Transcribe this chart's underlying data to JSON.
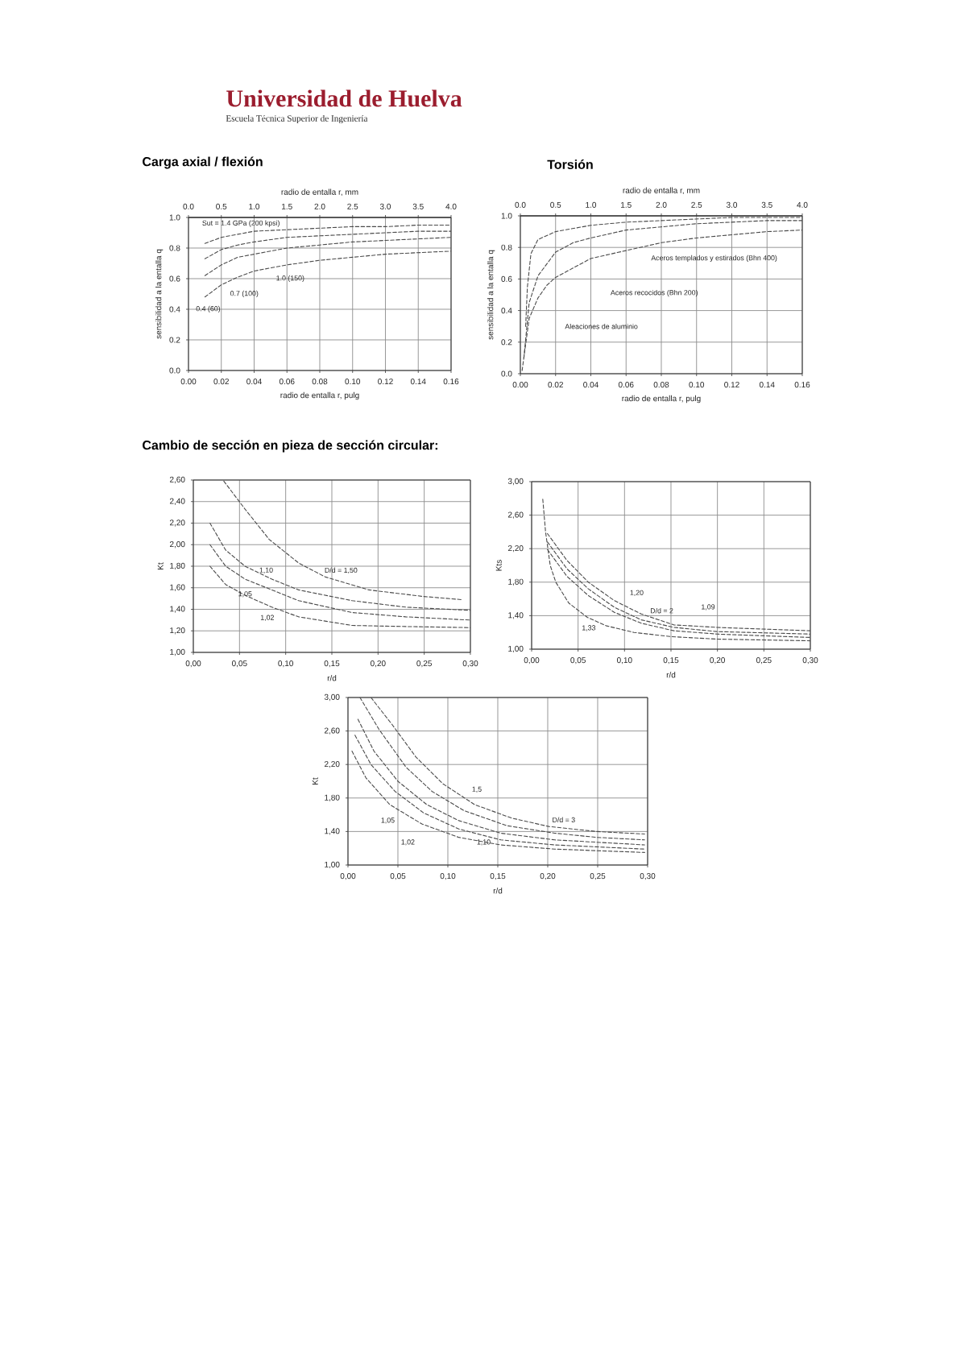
{
  "chart_data": [
    {
      "type": "other",
      "title": "Universidad de Huelva",
      "subtitle": "Escuela Técnica Superior de Ingeniería"
    },
    {
      "type": "line",
      "title": "Carga axial / flexión",
      "xlabel": "radio de entalla r, pulg",
      "x2label": "radio de entalla r, mm",
      "ylabel": "sensibilidad a la entalla q",
      "xlim": [
        0,
        0.16
      ],
      "xticks": [
        {
          "value": 0,
          "label": "0.00"
        },
        0.02,
        0.04,
        0.06,
        0.08,
        {
          "value": 0.1,
          "label": "0.10"
        },
        0.12,
        0.14,
        0.16
      ],
      "x2lim": [
        0,
        4
      ],
      "x2ticks": [
        {
          "value": 0,
          "label": "0.0"
        },
        0.5,
        {
          "value": 1,
          "label": "1.0"
        },
        1.5,
        {
          "value": 2,
          "label": "2.0"
        },
        2.5,
        {
          "value": 3,
          "label": "3.0"
        },
        3.5,
        {
          "value": 4,
          "label": "4.0"
        }
      ],
      "ylim": [
        0,
        1
      ],
      "yticks": [
        {
          "value": 0,
          "label": "0.0"
        },
        0.2,
        0.4,
        0.6,
        0.8,
        {
          "value": 1,
          "label": "1.0"
        }
      ],
      "grid": true,
      "line_style": "dashed",
      "x": [
        0.01,
        0.02,
        0.03,
        0.04,
        0.06,
        0.08,
        0.1,
        0.12,
        0.14,
        0.16
      ],
      "series": [
        {
          "color": "#4a4a4a",
          "values": [
            0.83,
            0.87,
            0.89,
            0.91,
            0.92,
            0.93,
            0.94,
            0.94,
            0.95,
            0.95
          ]
        },
        {
          "color": "#4a4a4a",
          "values": [
            0.73,
            0.79,
            0.82,
            0.84,
            0.87,
            0.88,
            0.89,
            0.9,
            0.91,
            0.91
          ]
        },
        {
          "color": "#4a4a4a",
          "values": [
            0.62,
            0.69,
            0.74,
            0.76,
            0.8,
            0.82,
            0.84,
            0.85,
            0.86,
            0.87
          ]
        },
        {
          "color": "#4a4a4a",
          "values": [
            0.48,
            0.56,
            0.61,
            0.65,
            0.69,
            0.72,
            0.74,
            0.76,
            0.77,
            0.78
          ]
        }
      ],
      "annotations": [
        "Sut = 1.4 GPa (200 kpsi)",
        "1.0 (150)",
        "0.7 (100)",
        "0.4 (60)"
      ]
    },
    {
      "type": "line",
      "title": "Torsión",
      "xlabel": "radio de entalla r, pulg",
      "x2label": "radio de entalla r, mm",
      "ylabel": "sensibilidad a la entalla q",
      "xlim": [
        0,
        0.16
      ],
      "xticks": [
        {
          "value": 0,
          "label": "0.00"
        },
        0.02,
        0.04,
        0.06,
        0.08,
        {
          "value": 0.1,
          "label": "0.10"
        },
        0.12,
        0.14,
        0.16
      ],
      "x2lim": [
        0,
        4
      ],
      "x2ticks": [
        {
          "value": 0,
          "label": "0.0"
        },
        0.5,
        {
          "value": 1,
          "label": "1.0"
        },
        1.5,
        {
          "value": 2,
          "label": "2.0"
        },
        2.5,
        {
          "value": 3,
          "label": "3.0"
        },
        3.5,
        {
          "value": 4,
          "label": "4.0"
        }
      ],
      "ylim": [
        0,
        1
      ],
      "yticks": [
        {
          "value": 0,
          "label": "0.0"
        },
        0.2,
        0.4,
        0.6,
        0.8,
        {
          "value": 1,
          "label": "1.0"
        }
      ],
      "grid": true,
      "line_style": "dashed",
      "series": [
        {
          "color": "#4a4a4a",
          "x": [
            0.003,
            0.004,
            0.006,
            0.01,
            0.02,
            0.04,
            0.06,
            0.08,
            0.1,
            0.12,
            0.14,
            0.16
          ],
          "values": [
            0.3,
            0.55,
            0.76,
            0.85,
            0.9,
            0.94,
            0.96,
            0.97,
            0.98,
            0.99,
            0.99,
            0.99
          ]
        },
        {
          "color": "#4a4a4a",
          "x": [
            0.002,
            0.005,
            0.01,
            0.02,
            0.03,
            0.04,
            0.06,
            0.08,
            0.1,
            0.12,
            0.14,
            0.16
          ],
          "values": [
            0.1,
            0.45,
            0.62,
            0.77,
            0.83,
            0.86,
            0.91,
            0.93,
            0.95,
            0.96,
            0.97,
            0.97
          ]
        },
        {
          "color": "#4a4a4a",
          "x": [
            0.001,
            0.005,
            0.01,
            0.015,
            0.02,
            0.04,
            0.06,
            0.08,
            0.1,
            0.12,
            0.14,
            0.16
          ],
          "values": [
            0.02,
            0.35,
            0.48,
            0.56,
            0.61,
            0.73,
            0.78,
            0.83,
            0.86,
            0.88,
            0.9,
            0.91
          ]
        }
      ],
      "annotations": [
        "Aceros templados y estirados (Bhn 400)",
        "Aceros recocidos (Bhn 200)",
        "Aleaciones de aluminio"
      ]
    },
    {
      "type": "line",
      "title": "Cambio de sección en pieza de sección circular:",
      "xlabel": "r/d",
      "ylabel": "Kt",
      "xlim": [
        0,
        0.3
      ],
      "xticks": [
        {
          "value": 0,
          "label": "0,00"
        },
        {
          "value": 0.05,
          "label": "0,05"
        },
        {
          "value": 0.1,
          "label": "0,10"
        },
        {
          "value": 0.15,
          "label": "0,15"
        },
        {
          "value": 0.2,
          "label": "0,20"
        },
        {
          "value": 0.25,
          "label": "0,25"
        },
        {
          "value": 0.3,
          "label": "0,30"
        }
      ],
      "ylim": [
        1,
        2.6
      ],
      "yticks": [
        {
          "value": 1,
          "label": "1,00"
        },
        {
          "value": 1.2,
          "label": "1,20"
        },
        {
          "value": 1.4,
          "label": "1,40"
        },
        {
          "value": 1.6,
          "label": "1,60"
        },
        {
          "value": 1.8,
          "label": "1,80"
        },
        {
          "value": 2,
          "label": "2,00"
        },
        {
          "value": 2.2,
          "label": "2,20"
        },
        {
          "value": 2.4,
          "label": "2,40"
        },
        {
          "value": 2.6,
          "label": "2,60"
        }
      ],
      "grid": true,
      "line_style": "dashed",
      "series": [
        {
          "color": "#4a4a4a",
          "x": [
            0.033,
            0.056,
            0.082,
            0.114,
            0.143,
            0.19,
            0.248,
            0.29
          ],
          "values": [
            2.59,
            2.33,
            2.05,
            1.83,
            1.7,
            1.58,
            1.52,
            1.49
          ]
        },
        {
          "color": "#4a4a4a",
          "x": [
            0.018,
            0.035,
            0.056,
            0.085,
            0.114,
            0.172,
            0.23,
            0.3
          ],
          "values": [
            2.2,
            1.95,
            1.8,
            1.68,
            1.58,
            1.48,
            1.42,
            1.39
          ]
        },
        {
          "color": "#4a4a4a",
          "x": [
            0.018,
            0.035,
            0.056,
            0.085,
            0.114,
            0.172,
            0.23,
            0.3
          ],
          "values": [
            2.0,
            1.8,
            1.68,
            1.58,
            1.48,
            1.37,
            1.33,
            1.3
          ]
        },
        {
          "color": "#4a4a4a",
          "x": [
            0.018,
            0.035,
            0.056,
            0.085,
            0.114,
            0.172,
            0.23,
            0.3
          ],
          "values": [
            1.8,
            1.63,
            1.53,
            1.42,
            1.33,
            1.25,
            1.24,
            1.23
          ]
        }
      ],
      "annotations": [
        "D/d = 1,50",
        "1,10",
        "1,05",
        "1,02"
      ]
    },
    {
      "type": "line",
      "xlabel": "r/d",
      "ylabel": "Kts",
      "xlim": [
        0,
        0.3
      ],
      "xticks": [
        {
          "value": 0,
          "label": "0,00"
        },
        {
          "value": 0.05,
          "label": "0,05"
        },
        {
          "value": 0.1,
          "label": "0,10"
        },
        {
          "value": 0.15,
          "label": "0,15"
        },
        {
          "value": 0.2,
          "label": "0,20"
        },
        {
          "value": 0.25,
          "label": "0,25"
        },
        {
          "value": 0.3,
          "label": "0,30"
        }
      ],
      "ylim": [
        1,
        3
      ],
      "yticks": [
        {
          "value": 1,
          "label": "1,00"
        },
        {
          "value": 1.4,
          "label": "1,40"
        },
        {
          "value": 1.8,
          "label": "1,80"
        },
        {
          "value": 2.2,
          "label": "2,20"
        },
        {
          "value": 2.6,
          "label": "2,60"
        },
        {
          "value": 3,
          "label": "3,00"
        }
      ],
      "grid": true,
      "line_style": "dashed",
      "series": [
        {
          "color": "#4a4a4a",
          "x": [
            0.017,
            0.038,
            0.061,
            0.089,
            0.118,
            0.153,
            0.2,
            0.3
          ],
          "values": [
            2.38,
            2.06,
            1.8,
            1.58,
            1.42,
            1.29,
            1.26,
            1.22
          ]
        },
        {
          "color": "#4a4a4a",
          "x": [
            0.017,
            0.038,
            0.061,
            0.089,
            0.118,
            0.153,
            0.2,
            0.3
          ],
          "values": [
            2.28,
            1.96,
            1.72,
            1.5,
            1.35,
            1.26,
            1.21,
            1.18
          ]
        },
        {
          "color": "#4a4a4a",
          "x": [
            0.017,
            0.038,
            0.061,
            0.089,
            0.118,
            0.153,
            0.2,
            0.3
          ],
          "values": [
            2.19,
            1.87,
            1.64,
            1.44,
            1.31,
            1.22,
            1.18,
            1.14
          ]
        },
        {
          "color": "#4a4a4a",
          "x": [
            0.012,
            0.015,
            0.02,
            0.026,
            0.04,
            0.06,
            0.08,
            0.11,
            0.15,
            0.2,
            0.3
          ],
          "values": [
            2.79,
            2.4,
            2.0,
            1.8,
            1.55,
            1.38,
            1.28,
            1.2,
            1.15,
            1.12,
            1.1
          ]
        }
      ],
      "annotations": [
        "1,20",
        "D/d = 2",
        "1,09",
        "1,33"
      ]
    },
    {
      "type": "line",
      "xlabel": "r/d",
      "ylabel": "Kt",
      "xlim": [
        0,
        0.3
      ],
      "xticks": [
        {
          "value": 0,
          "label": "0,00"
        },
        {
          "value": 0.05,
          "label": "0,05"
        },
        {
          "value": 0.1,
          "label": "0,10"
        },
        {
          "value": 0.15,
          "label": "0,15"
        },
        {
          "value": 0.2,
          "label": "0,20"
        },
        {
          "value": 0.25,
          "label": "0,25"
        },
        {
          "value": 0.3,
          "label": "0,30"
        }
      ],
      "ylim": [
        1,
        3
      ],
      "yticks": [
        {
          "value": 1,
          "label": "1,00"
        },
        {
          "value": 1.4,
          "label": "1,40"
        },
        {
          "value": 1.8,
          "label": "1,80"
        },
        {
          "value": 2.2,
          "label": "2,20"
        },
        {
          "value": 2.6,
          "label": "2,60"
        },
        {
          "value": 3,
          "label": "3,00"
        }
      ],
      "grid": true,
      "line_style": "dashed",
      "series": [
        {
          "color": "#4a4a4a",
          "x": [
            0.023,
            0.044,
            0.068,
            0.095,
            0.127,
            0.164,
            0.201,
            0.249,
            0.297
          ],
          "values": [
            3.0,
            2.68,
            2.29,
            1.97,
            1.72,
            1.56,
            1.46,
            1.4,
            1.37
          ]
        },
        {
          "color": "#4a4a4a",
          "x": [
            0.012,
            0.031,
            0.058,
            0.084,
            0.116,
            0.159,
            0.207,
            0.249,
            0.297
          ],
          "values": [
            3.0,
            2.62,
            2.17,
            1.88,
            1.65,
            1.47,
            1.38,
            1.33,
            1.3
          ]
        },
        {
          "color": "#4a4a4a",
          "x": [
            0.01,
            0.026,
            0.05,
            0.079,
            0.111,
            0.153,
            0.207,
            0.297
          ],
          "values": [
            2.74,
            2.36,
            2.0,
            1.72,
            1.53,
            1.38,
            1.3,
            1.24
          ]
        },
        {
          "color": "#4a4a4a",
          "x": [
            0.007,
            0.023,
            0.047,
            0.076,
            0.111,
            0.153,
            0.207,
            0.297
          ],
          "values": [
            2.55,
            2.2,
            1.88,
            1.62,
            1.43,
            1.3,
            1.24,
            1.19
          ]
        },
        {
          "color": "#4a4a4a",
          "x": [
            0.004,
            0.018,
            0.042,
            0.074,
            0.111,
            0.153,
            0.207,
            0.297
          ],
          "values": [
            2.36,
            2.04,
            1.72,
            1.49,
            1.33,
            1.24,
            1.19,
            1.15
          ]
        }
      ],
      "annotations": [
        "1,5",
        "D/d = 3",
        "1,05",
        "1,02",
        "1,10"
      ]
    }
  ]
}
